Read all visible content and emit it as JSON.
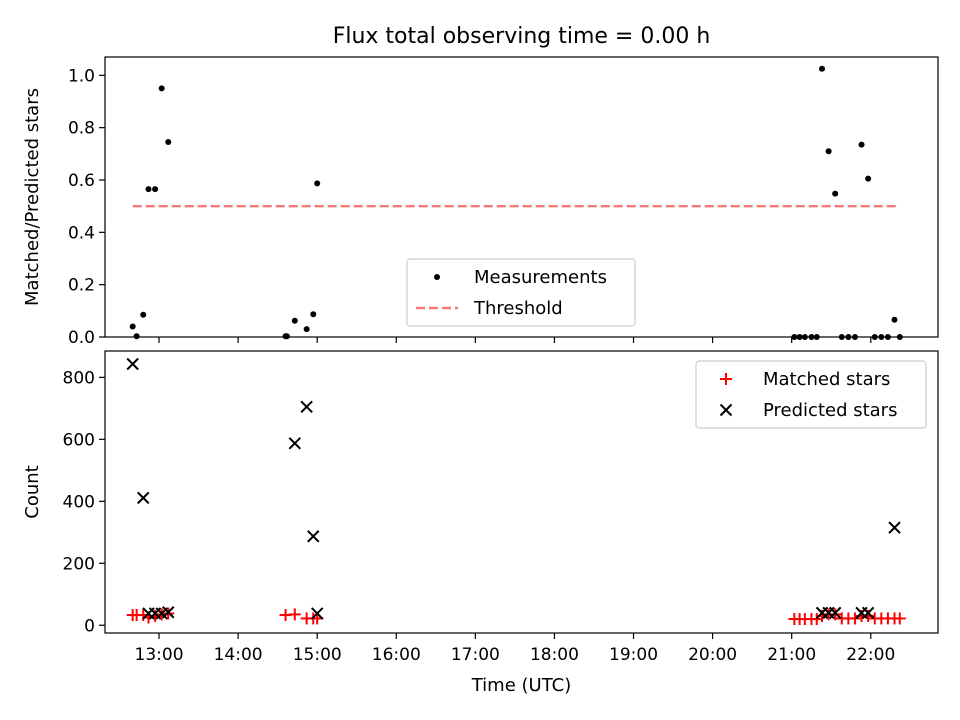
{
  "chart_data": [
    {
      "type": "scatter",
      "title": "Flux total observing time = 0.00 h",
      "ylabel": "Matched/Predicted stars",
      "xlabel": "",
      "ylim": [
        0,
        1.07
      ],
      "xlim": [
        "12:19",
        "22:51"
      ],
      "yticks": [
        "0.0",
        "0.2",
        "0.4",
        "0.6",
        "0.8",
        "1.0"
      ],
      "yticks_values": [
        0,
        0.2,
        0.4,
        0.6,
        0.8,
        1.0
      ],
      "legend_position": "lower-center",
      "series": [
        {
          "name": "Measurements",
          "marker": "dot",
          "color": "#000000",
          "points": [
            [
              "12:40",
              0.04
            ],
            [
              "12:43",
              0.003
            ],
            [
              "12:48",
              0.085
            ],
            [
              "12:52",
              0.565
            ],
            [
              "12:57",
              0.565
            ],
            [
              "13:02",
              0.95
            ],
            [
              "13:07",
              0.745
            ],
            [
              "14:36",
              0.003
            ],
            [
              "14:37",
              0.003
            ],
            [
              "14:43",
              0.062
            ],
            [
              "14:52",
              0.03
            ],
            [
              "14:57",
              0.087
            ],
            [
              "15:00",
              0.587
            ],
            [
              "21:02",
              0.0
            ],
            [
              "21:06",
              0.0
            ],
            [
              "21:10",
              0.0
            ],
            [
              "21:15",
              0.0
            ],
            [
              "21:19",
              0.0
            ],
            [
              "21:23",
              1.025
            ],
            [
              "21:28",
              0.71
            ],
            [
              "21:33",
              0.548
            ],
            [
              "21:38",
              0.0
            ],
            [
              "21:43",
              0.0
            ],
            [
              "21:48",
              0.0
            ],
            [
              "21:53",
              0.735
            ],
            [
              "21:58",
              0.605
            ],
            [
              "22:03",
              0.0
            ],
            [
              "22:08",
              0.0
            ],
            [
              "22:13",
              0.0
            ],
            [
              "22:18",
              0.066
            ],
            [
              "22:22",
              0.0
            ]
          ]
        },
        {
          "name": "Threshold",
          "marker": "dashed-line",
          "color": "#f47a7a",
          "points": [
            [
              "12:40",
              0.5
            ],
            [
              "22:22",
              0.5
            ]
          ]
        }
      ]
    },
    {
      "type": "scatter",
      "title": "",
      "ylabel": "Count",
      "xlabel": "Time (UTC)",
      "ylim": [
        -25,
        885
      ],
      "xlim": [
        "12:19",
        "22:51"
      ],
      "xticks": [
        "13:00",
        "14:00",
        "15:00",
        "16:00",
        "17:00",
        "18:00",
        "19:00",
        "20:00",
        "21:00",
        "22:00"
      ],
      "yticks": [
        "0",
        "200",
        "400",
        "600",
        "800"
      ],
      "yticks_values": [
        0,
        200,
        400,
        600,
        800
      ],
      "legend_position": "top-right",
      "series": [
        {
          "name": "Matched stars",
          "marker": "plus",
          "color": "#ff0000",
          "points": [
            [
              "12:40",
              33
            ],
            [
              "12:43",
              33
            ],
            [
              "12:48",
              33
            ],
            [
              "12:52",
              25
            ],
            [
              "12:57",
              30
            ],
            [
              "13:02",
              35
            ],
            [
              "13:07",
              38
            ],
            [
              "14:36",
              33
            ],
            [
              "14:43",
              35
            ],
            [
              "14:52",
              22
            ],
            [
              "14:57",
              22
            ],
            [
              "15:00",
              22
            ],
            [
              "21:02",
              20
            ],
            [
              "21:06",
              20
            ],
            [
              "21:10",
              20
            ],
            [
              "21:15",
              20
            ],
            [
              "21:19",
              20
            ],
            [
              "21:23",
              30
            ],
            [
              "21:28",
              35
            ],
            [
              "21:33",
              35
            ],
            [
              "21:38",
              22
            ],
            [
              "21:43",
              22
            ],
            [
              "21:48",
              22
            ],
            [
              "21:53",
              30
            ],
            [
              "21:58",
              30
            ],
            [
              "22:03",
              22
            ],
            [
              "22:08",
              22
            ],
            [
              "22:13",
              22
            ],
            [
              "22:18",
              22
            ],
            [
              "22:22",
              22
            ]
          ]
        },
        {
          "name": "Predicted stars",
          "marker": "x",
          "color": "#000000",
          "points": [
            [
              "12:40",
              843
            ],
            [
              "12:48",
              411
            ],
            [
              "12:52",
              38
            ],
            [
              "12:57",
              38
            ],
            [
              "13:02",
              38
            ],
            [
              "13:07",
              42
            ],
            [
              "14:43",
              587
            ],
            [
              "14:52",
              705
            ],
            [
              "14:57",
              287
            ],
            [
              "15:00",
              38
            ],
            [
              "21:23",
              40
            ],
            [
              "21:28",
              40
            ],
            [
              "21:33",
              40
            ],
            [
              "21:53",
              40
            ],
            [
              "21:58",
              40
            ],
            [
              "22:18",
              315
            ]
          ]
        }
      ]
    }
  ]
}
